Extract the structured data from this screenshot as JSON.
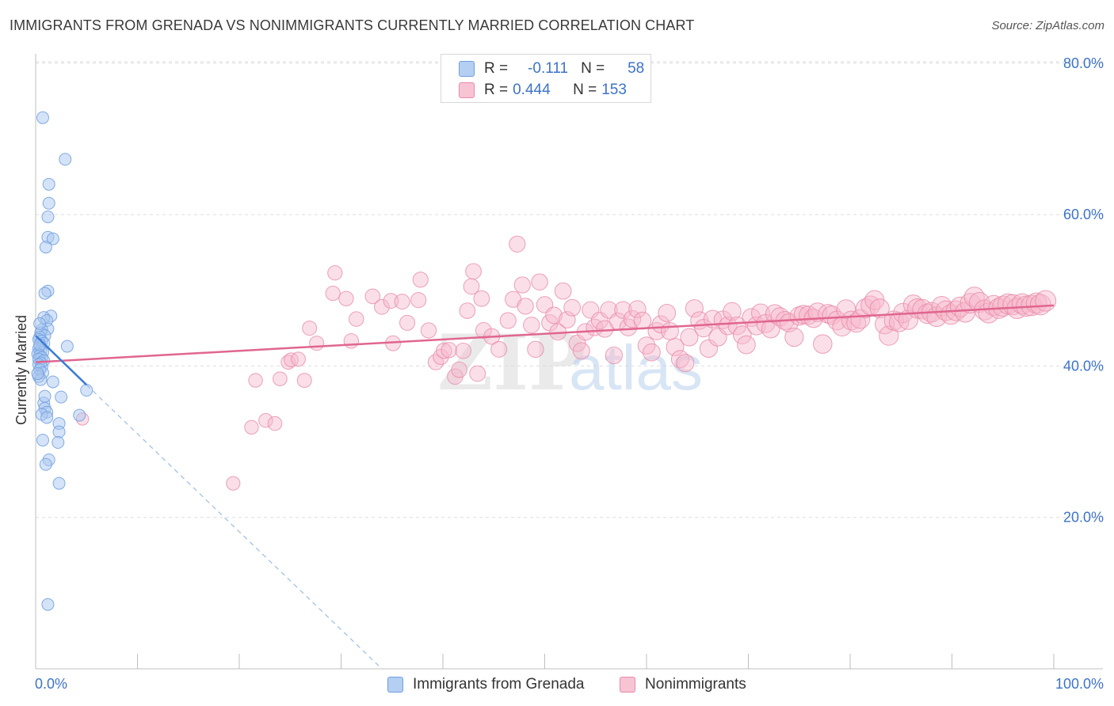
{
  "header": {
    "title": "IMMIGRANTS FROM GRENADA VS NONIMMIGRANTS CURRENTLY MARRIED CORRELATION CHART",
    "source": "Source: ZipAtlas.com"
  },
  "watermark": {
    "part1": "ZIP",
    "part2": "atlas"
  },
  "legend": {
    "rows": [
      {
        "r_label": "R =",
        "r_value": "-0.111",
        "n_label": "N =",
        "n_value": "58"
      },
      {
        "r_label": "R =",
        "r_value": "0.444",
        "n_label": "N =",
        "n_value": "153"
      }
    ]
  },
  "colors": {
    "blue_fill": "#a9c8ef",
    "blue_stroke": "#6f9ee0",
    "blue_line": "#3a7bd5",
    "pink_fill": "#f6b8cb",
    "pink_stroke": "#e98aa8",
    "pink_line": "#e06690",
    "axis_label": "#3d73c9",
    "grid": "#dddddd"
  },
  "chart_data": {
    "type": "scatter",
    "title": "IMMIGRANTS FROM GRENADA VS NONIMMIGRANTS CURRENTLY MARRIED CORRELATION CHART",
    "xlabel": "",
    "ylabel": "Currently Married",
    "xlim": [
      0,
      100
    ],
    "ylim": [
      0,
      80
    ],
    "x_tick_labels": [
      "0.0%",
      "100.0%"
    ],
    "y_ticks": [
      20,
      40,
      60,
      80
    ],
    "y_tick_labels": [
      "20.0%",
      "40.0%",
      "60.0%",
      "80.0%"
    ],
    "grid": true,
    "legend_position": "bottom",
    "series": [
      {
        "name": "Immigrants from Grenada",
        "r": -0.111,
        "n": 58,
        "trend": {
          "x": [
            0,
            5
          ],
          "y": [
            44,
            37.5
          ]
        },
        "trend_extension": {
          "x": [
            5,
            34
          ],
          "y": [
            37.5,
            0
          ]
        },
        "points": [
          [
            0.7,
            72.8
          ],
          [
            2.9,
            67.3
          ],
          [
            1.3,
            64.0
          ],
          [
            1.3,
            61.5
          ],
          [
            1.2,
            59.7
          ],
          [
            1.2,
            57.0
          ],
          [
            1.7,
            56.8
          ],
          [
            1.0,
            55.7
          ],
          [
            1.2,
            49.9
          ],
          [
            0.9,
            49.6
          ],
          [
            1.5,
            46.6
          ],
          [
            0.8,
            46.4
          ],
          [
            1.1,
            46.0
          ],
          [
            1.2,
            44.9
          ],
          [
            0.6,
            44.8
          ],
          [
            0.5,
            44.4
          ],
          [
            0.9,
            44.0
          ],
          [
            0.4,
            43.8
          ],
          [
            0.3,
            43.5
          ],
          [
            0.6,
            43.3
          ],
          [
            0.8,
            43.0
          ],
          [
            3.1,
            42.6
          ],
          [
            0.3,
            42.3
          ],
          [
            0.5,
            42.0
          ],
          [
            0.7,
            41.8
          ],
          [
            0.2,
            41.6
          ],
          [
            0.4,
            41.4
          ],
          [
            0.6,
            41.1
          ],
          [
            0.3,
            40.9
          ],
          [
            0.8,
            40.7
          ],
          [
            0.5,
            40.4
          ],
          [
            0.3,
            40.2
          ],
          [
            0.6,
            39.9
          ],
          [
            0.4,
            39.5
          ],
          [
            0.7,
            39.1
          ],
          [
            0.3,
            38.6
          ],
          [
            0.5,
            38.2
          ],
          [
            1.7,
            37.9
          ],
          [
            5.0,
            36.8
          ],
          [
            2.5,
            35.9
          ],
          [
            0.8,
            35.1
          ],
          [
            0.9,
            34.4
          ],
          [
            1.1,
            33.9
          ],
          [
            0.6,
            33.6
          ],
          [
            4.3,
            33.5
          ],
          [
            1.1,
            33.2
          ],
          [
            2.3,
            32.4
          ],
          [
            2.3,
            31.3
          ],
          [
            0.7,
            30.2
          ],
          [
            2.2,
            29.9
          ],
          [
            1.3,
            27.6
          ],
          [
            1.0,
            27.0
          ],
          [
            2.3,
            24.5
          ],
          [
            1.2,
            8.5
          ],
          [
            0.4,
            42.8
          ],
          [
            0.2,
            39.0
          ],
          [
            0.9,
            36.0
          ],
          [
            0.4,
            45.6
          ]
        ]
      },
      {
        "name": "Nonimmigrants",
        "r": 0.444,
        "n": 153,
        "trend": {
          "x": [
            0,
            100
          ],
          "y": [
            40.5,
            48
          ]
        },
        "points": [
          [
            4.6,
            33.0
          ],
          [
            19.4,
            24.5
          ],
          [
            21.2,
            31.9
          ],
          [
            21.6,
            38.1
          ],
          [
            22.6,
            32.8
          ],
          [
            23.5,
            32.4
          ],
          [
            24.0,
            38.3
          ],
          [
            24.8,
            40.5
          ],
          [
            25.1,
            40.8
          ],
          [
            25.8,
            40.9
          ],
          [
            26.4,
            38.1
          ],
          [
            26.9,
            45.0
          ],
          [
            27.6,
            43.0
          ],
          [
            29.2,
            49.6
          ],
          [
            29.4,
            52.3
          ],
          [
            30.5,
            48.9
          ],
          [
            31.0,
            43.3
          ],
          [
            31.5,
            46.2
          ],
          [
            33.1,
            49.2
          ],
          [
            34.0,
            47.8
          ],
          [
            34.9,
            48.6
          ],
          [
            35.1,
            43.0
          ],
          [
            36.0,
            48.5
          ],
          [
            36.5,
            45.7
          ],
          [
            37.6,
            48.7
          ],
          [
            37.8,
            51.4
          ],
          [
            38.6,
            44.7
          ],
          [
            39.3,
            40.5
          ],
          [
            39.8,
            41.2
          ],
          [
            40.1,
            42.0
          ],
          [
            40.6,
            42.1
          ],
          [
            41.2,
            38.6
          ],
          [
            41.6,
            39.5
          ],
          [
            42.0,
            42.0
          ],
          [
            42.4,
            47.3
          ],
          [
            42.8,
            50.5
          ],
          [
            43.0,
            52.5
          ],
          [
            43.4,
            39.0
          ],
          [
            43.8,
            48.9
          ],
          [
            44.0,
            44.7
          ],
          [
            44.8,
            43.9
          ],
          [
            45.5,
            42.2
          ],
          [
            46.4,
            46.0
          ],
          [
            46.9,
            48.8
          ],
          [
            47.3,
            56.1
          ],
          [
            47.8,
            50.7
          ],
          [
            48.1,
            47.9
          ],
          [
            48.7,
            45.4
          ],
          [
            49.1,
            42.2
          ],
          [
            49.5,
            51.1
          ],
          [
            50.0,
            48.1
          ],
          [
            50.5,
            45.7
          ],
          [
            50.9,
            46.7
          ],
          [
            51.3,
            44.5
          ],
          [
            51.8,
            49.9
          ],
          [
            52.2,
            46.1
          ],
          [
            52.7,
            47.7
          ],
          [
            53.2,
            43.0
          ],
          [
            53.6,
            42.0
          ],
          [
            54.0,
            44.5
          ],
          [
            54.5,
            47.4
          ],
          [
            54.9,
            45.1
          ],
          [
            55.4,
            46.0
          ],
          [
            55.9,
            44.9
          ],
          [
            56.3,
            47.4
          ],
          [
            56.8,
            41.4
          ],
          [
            57.2,
            45.9
          ],
          [
            57.7,
            47.4
          ],
          [
            58.2,
            45.1
          ],
          [
            58.6,
            46.2
          ],
          [
            59.1,
            47.5
          ],
          [
            59.6,
            46.0
          ],
          [
            60.0,
            42.7
          ],
          [
            60.5,
            41.8
          ],
          [
            61.0,
            44.6
          ],
          [
            61.4,
            45.5
          ],
          [
            62.0,
            47.0
          ],
          [
            62.3,
            44.6
          ],
          [
            62.8,
            42.5
          ],
          [
            63.3,
            40.9
          ],
          [
            63.8,
            40.4
          ],
          [
            64.2,
            43.8
          ],
          [
            64.7,
            47.6
          ],
          [
            65.2,
            46.0
          ],
          [
            65.6,
            45.0
          ],
          [
            66.1,
            42.3
          ],
          [
            66.5,
            46.2
          ],
          [
            67.0,
            43.8
          ],
          [
            67.5,
            46.1
          ],
          [
            68.0,
            45.3
          ],
          [
            68.4,
            47.2
          ],
          [
            68.9,
            45.3
          ],
          [
            69.4,
            44.1
          ],
          [
            69.8,
            42.8
          ],
          [
            70.3,
            46.4
          ],
          [
            70.8,
            45.3
          ],
          [
            71.2,
            47.0
          ],
          [
            71.7,
            45.6
          ],
          [
            72.2,
            44.9
          ],
          [
            72.6,
            46.9
          ],
          [
            73.1,
            46.5
          ],
          [
            73.6,
            46.0
          ],
          [
            74.0,
            45.7
          ],
          [
            74.5,
            43.8
          ],
          [
            75.0,
            46.6
          ],
          [
            75.4,
            46.8
          ],
          [
            75.9,
            46.7
          ],
          [
            76.4,
            46.3
          ],
          [
            76.8,
            47.1
          ],
          [
            77.3,
            42.9
          ],
          [
            77.8,
            46.9
          ],
          [
            78.2,
            46.7
          ],
          [
            78.7,
            46.0
          ],
          [
            79.2,
            45.2
          ],
          [
            79.6,
            47.5
          ],
          [
            80.1,
            46.0
          ],
          [
            80.6,
            45.7
          ],
          [
            81.0,
            46.2
          ],
          [
            81.5,
            47.6
          ],
          [
            82.0,
            48.0
          ],
          [
            82.4,
            48.7
          ],
          [
            82.9,
            47.6
          ],
          [
            83.4,
            45.5
          ],
          [
            83.8,
            44.0
          ],
          [
            84.3,
            46.0
          ],
          [
            84.8,
            45.8
          ],
          [
            85.2,
            47.0
          ],
          [
            85.7,
            46.1
          ],
          [
            86.2,
            48.1
          ],
          [
            86.6,
            47.6
          ],
          [
            87.1,
            47.5
          ],
          [
            87.6,
            46.9
          ],
          [
            88.0,
            47.1
          ],
          [
            88.5,
            46.5
          ],
          [
            89.0,
            47.9
          ],
          [
            89.4,
            47.3
          ],
          [
            89.9,
            46.8
          ],
          [
            90.4,
            47.3
          ],
          [
            90.8,
            47.8
          ],
          [
            91.3,
            47.1
          ],
          [
            91.8,
            48.3
          ],
          [
            92.2,
            49.1
          ],
          [
            92.7,
            48.4
          ],
          [
            93.2,
            47.4
          ],
          [
            93.6,
            47.0
          ],
          [
            94.1,
            48.0
          ],
          [
            94.6,
            47.6
          ],
          [
            95.0,
            47.9
          ],
          [
            95.5,
            48.2
          ],
          [
            96.0,
            48.1
          ],
          [
            96.4,
            47.6
          ],
          [
            96.9,
            48.2
          ],
          [
            97.3,
            47.9
          ],
          [
            97.8,
            48.0
          ],
          [
            98.3,
            48.3
          ],
          [
            98.7,
            48.1
          ],
          [
            99.2,
            48.6
          ]
        ]
      }
    ]
  },
  "bottom_legend": {
    "items": [
      {
        "label": "Immigrants from Grenada"
      },
      {
        "label": "Nonimmigrants"
      }
    ]
  }
}
